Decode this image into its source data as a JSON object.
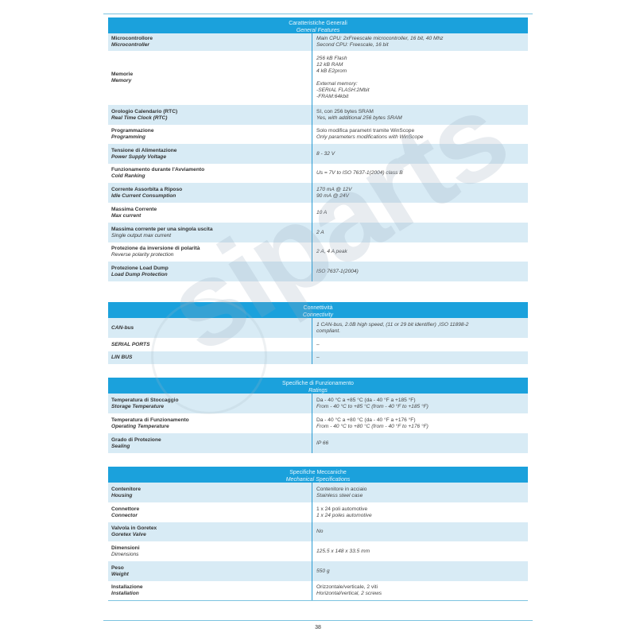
{
  "watermark": "siparts",
  "page_number": "38",
  "sections": [
    {
      "title_it": "Caratteristiche Generali",
      "title_en": "General Features",
      "rows": [
        {
          "label_it": "Microcontrollore",
          "label_en": "Microcontroller",
          "values": [
            {
              "text": "Main CPU: 2xFreescale microcontroller, 16 bit, 40 Mhz",
              "italic": true
            },
            {
              "text": "Second CPU: Freescale, 16 bit",
              "italic": true
            }
          ]
        },
        {
          "label_it": "Memorie",
          "label_en": "Memory",
          "values": [
            {
              "text": "256 kB Flash",
              "italic": true
            },
            {
              "text": "12 kB RAM",
              "italic": true
            },
            {
              "text": "4 kB E2prom",
              "italic": true
            },
            {
              "text": "",
              "italic": true
            },
            {
              "text": "External memory:",
              "italic": true
            },
            {
              "text": "-SERIAL FLASH:2Mbit",
              "italic": true
            },
            {
              "text": "-FRAM:64kbit",
              "italic": true
            }
          ]
        },
        {
          "label_it": "Orologio Calendario (RTC)",
          "label_en": "Real Time Clock (RTC)",
          "values": [
            {
              "text": "SI, con 256 bytes SRAM",
              "italic": false
            },
            {
              "text": "Yes, with additional 256 bytes SRAM",
              "italic": true
            }
          ]
        },
        {
          "label_it": "Programmazione",
          "label_en": "Programming",
          "values": [
            {
              "text": "Solo modifica parametri tramite WinScope",
              "italic": false
            },
            {
              "text": "Only parameters modifications with WinScope",
              "italic": true
            }
          ]
        },
        {
          "label_it": "Tensione di Alimentazione",
          "label_en": "Power Supply Voltage",
          "values": [
            {
              "text": "8 - 32 V",
              "italic": true
            }
          ]
        },
        {
          "label_it": "Funzionamento durante l'Avviamento",
          "label_en": "Cold Ranking",
          "values": [
            {
              "text": "Us = 7V to ISO 7637-1(2004) class B",
              "italic": true
            }
          ]
        },
        {
          "label_it": "Corrente Assorbita a Riposo",
          "label_en": "Idle Current Consumption",
          "values": [
            {
              "text": "170 mA @ 12V",
              "italic": true
            },
            {
              "text": "90 mA @ 24V",
              "italic": true
            }
          ]
        },
        {
          "label_it": "Massima Corrente",
          "label_en": "Max current",
          "values": [
            {
              "text": "10 A",
              "italic": true
            }
          ]
        },
        {
          "label_it": "Massima corrente per una singola uscita",
          "label_en": "Single output max current",
          "en_plain": true,
          "values": [
            {
              "text": "2 A",
              "italic": true
            }
          ]
        },
        {
          "label_it": "Protezione da inversione di polarità",
          "label_en": "Reverse polarity protection",
          "en_plain": true,
          "values": [
            {
              "text": "2 A, 4 A peak",
              "italic": true
            }
          ]
        },
        {
          "label_it": "Protezione Load Dump",
          "label_en": "Load Dump Protection",
          "values": [
            {
              "text": "ISO 7637-1(2004)",
              "italic": true
            }
          ]
        }
      ]
    },
    {
      "title_it": "Connettività",
      "title_en": "Connectivity",
      "rows": [
        {
          "label_it": "",
          "label_en": "CAN-bus",
          "values": [
            {
              "text": "1 CAN-bus, 2.0B high speed, (11 or 29 bit identifier) ,ISO 11898-2",
              "italic": true
            },
            {
              "text": "compliant.",
              "italic": true
            }
          ]
        },
        {
          "label_it": "",
          "label_en": "SERIAL PORTS",
          "values": [
            {
              "text": "–",
              "italic": false
            }
          ]
        },
        {
          "label_it": "",
          "label_en": "LIN BUS",
          "values": [
            {
              "text": "–",
              "italic": false
            }
          ]
        }
      ]
    },
    {
      "title_it": "Specifiche di Funzionamento",
      "title_en": "Ratings",
      "rows": [
        {
          "label_it": "Temperatura di Stoccaggio",
          "label_en": "Storage Temperature",
          "values": [
            {
              "text": "Da - 40 °C a +85 °C (da - 40 °F a +185 °F)",
              "italic": false
            },
            {
              "text": "From - 40 °C to +85 °C (from - 40 °F to +185 °F)",
              "italic": true
            }
          ]
        },
        {
          "label_it": "Temperatura di Funzionamento",
          "label_en": "Operating Temperature",
          "values": [
            {
              "text": "Da - 40 °C a +80 °C (da - 40 °F a +176 °F)",
              "italic": false
            },
            {
              "text": "From - 40 °C to +80 °C (from - 40 °F to +176 °F)",
              "italic": true
            }
          ]
        },
        {
          "label_it": "Grado di Protezione",
          "label_en": "Sealing",
          "values": [
            {
              "text": "IP 66",
              "italic": true
            }
          ]
        }
      ]
    },
    {
      "title_it": "Specifiche Meccaniche",
      "title_en": "Mechanical Specifications",
      "rows": [
        {
          "label_it": "Contenitore",
          "label_en": "Housing",
          "values": [
            {
              "text": "Contenitore in acciaio",
              "italic": false
            },
            {
              "text": "Stainless steel case",
              "italic": true
            }
          ]
        },
        {
          "label_it": "Connettore",
          "label_en": "Connector",
          "values": [
            {
              "text": "1 x 24 poli automotive",
              "italic": false
            },
            {
              "text": "1 x 24 poles automotive",
              "italic": true
            }
          ]
        },
        {
          "label_it": "Valvola in Goretex",
          "label_en": "Goretex Valve",
          "values": [
            {
              "text": "No",
              "italic": true
            }
          ]
        },
        {
          "label_it": "Dimensioni",
          "label_en": "Dimensions",
          "en_plain": true,
          "values": [
            {
              "text": "125.5 x 148 x 33.5 mm",
              "italic": true
            }
          ]
        },
        {
          "label_it": "Peso",
          "label_en": "Weight",
          "values": [
            {
              "text": "550 g",
              "italic": true
            }
          ]
        },
        {
          "label_it": "Installazione",
          "label_en": "Installation",
          "values": [
            {
              "text": "Orizzontale/verticale, 2 viti",
              "italic": false
            },
            {
              "text": "Horizontal/vertical, 2 screws",
              "italic": true
            }
          ]
        }
      ]
    }
  ]
}
